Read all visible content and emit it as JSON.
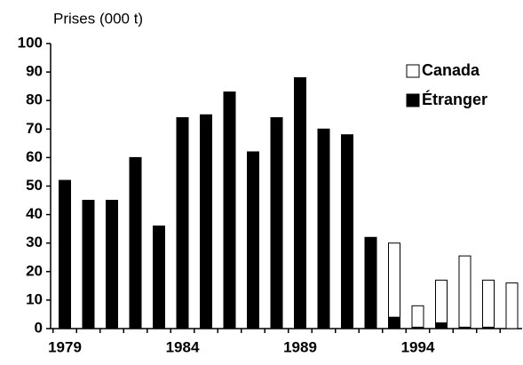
{
  "chart_data": {
    "type": "stacked_bar",
    "y_label": "Prises (000 t)",
    "categories": [
      "1979",
      null,
      null,
      null,
      null,
      "1984",
      null,
      null,
      null,
      null,
      "1989",
      null,
      null,
      null,
      null,
      "1994",
      null,
      null,
      null,
      null
    ],
    "series": [
      {
        "name": "Canada",
        "color": "#ffffff",
        "values": [
          0,
          0,
          0,
          0,
          0,
          0,
          0,
          0,
          0,
          0,
          0,
          0,
          0,
          0,
          26,
          7.5,
          15,
          25,
          16.5,
          16
        ]
      },
      {
        "name": "Étranger",
        "color": "#000000",
        "values": [
          52,
          45,
          45,
          60,
          36,
          74,
          75,
          83,
          62,
          74,
          88,
          70,
          68,
          32,
          4,
          0.5,
          2,
          0.5,
          0.5,
          0
        ]
      }
    ],
    "ylim": [
      0,
      100
    ],
    "yticks": [
      0,
      10,
      20,
      30,
      40,
      50,
      60,
      70,
      80,
      90,
      100
    ],
    "legend": "upper right"
  }
}
